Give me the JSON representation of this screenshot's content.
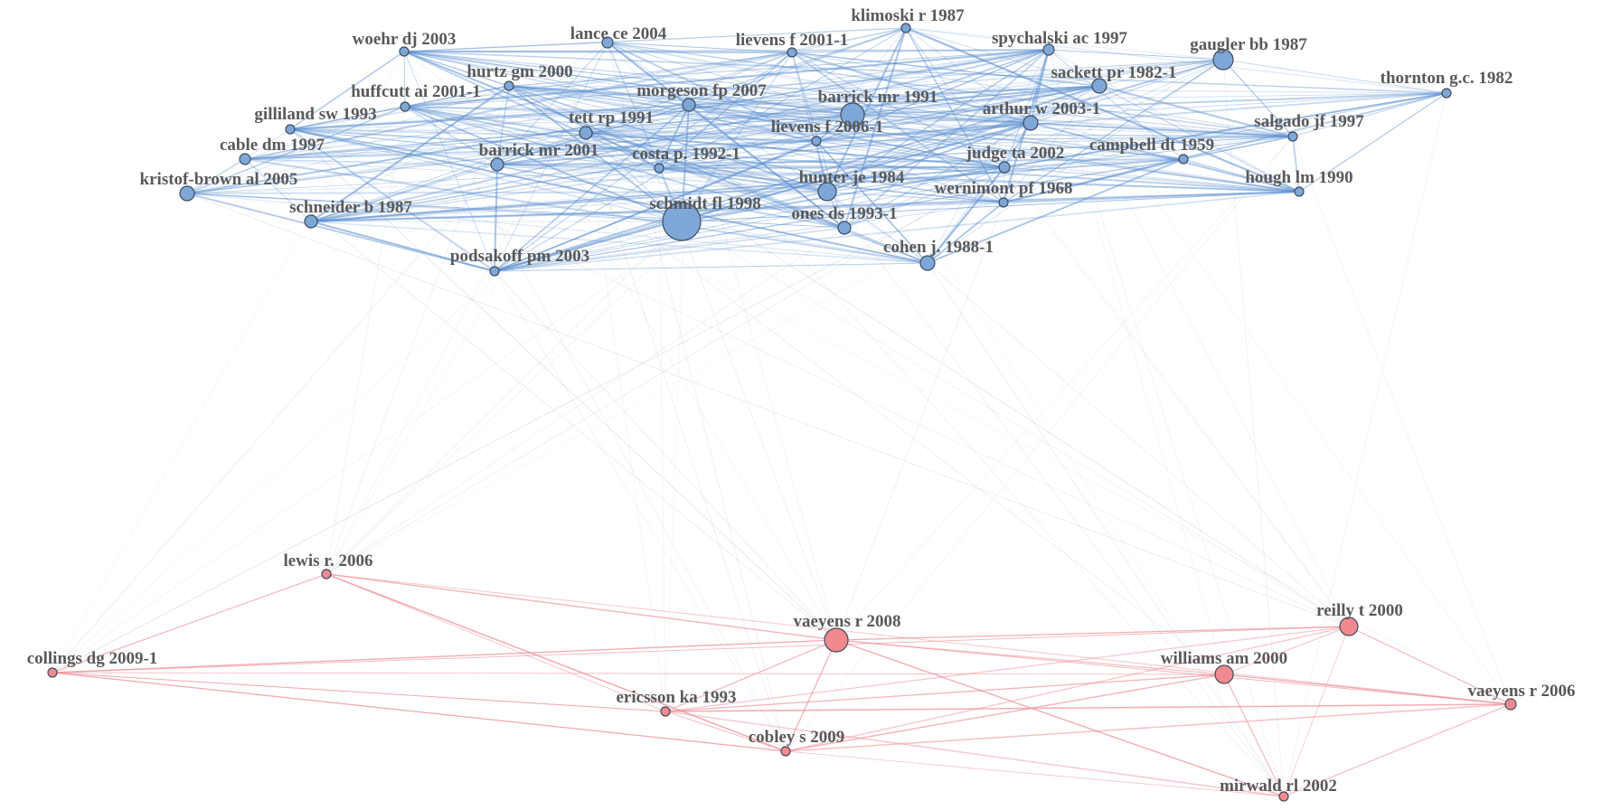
{
  "colors": {
    "cluster_blue_fill": "#7ea7d8",
    "cluster_blue_edge": "#5b8fd0",
    "cluster_red_fill": "#f08a8f",
    "cluster_red_edge": "#ee8d96",
    "node_stroke": "#3e4a5c",
    "inter_edge": "#b8bec8"
  },
  "clusters": [
    {
      "id": "blue",
      "nodes": [
        {
          "label": "woehr dj 2003"
        },
        {
          "label": "lance ce 2004"
        },
        {
          "label": "klimoski r 1987"
        },
        {
          "label": "lievens f 2001-1"
        },
        {
          "label": "spychalski ac 1997"
        },
        {
          "label": "gaugler bb 1987"
        },
        {
          "label": "hurtz gm 2000"
        },
        {
          "label": "sackett pr 1982-1"
        },
        {
          "label": "thornton g.c. 1982"
        },
        {
          "label": "huffcutt ai 2001-1"
        },
        {
          "label": "morgeson fp 2007"
        },
        {
          "label": "barrick mr 1991"
        },
        {
          "label": "gilliland sw 1993"
        },
        {
          "label": "tett rp 1991"
        },
        {
          "label": "arthur w 2003-1"
        },
        {
          "label": "salgado jf 1997"
        },
        {
          "label": "lievens f 2006-1"
        },
        {
          "label": "cable dm 1997"
        },
        {
          "label": "barrick mr 2001"
        },
        {
          "label": "costa p. 1992-1"
        },
        {
          "label": "judge ta 2002"
        },
        {
          "label": "campbell dt 1959"
        },
        {
          "label": "kristof-brown al 2005"
        },
        {
          "label": "hunter je 1984"
        },
        {
          "label": "hough lm 1990"
        },
        {
          "label": "wernimont pf 1968"
        },
        {
          "label": "schmidt fl 1998"
        },
        {
          "label": "schneider b 1987"
        },
        {
          "label": "ones ds 1993-1"
        },
        {
          "label": "cohen j. 1988-1"
        },
        {
          "label": "podsakoff pm 2003"
        }
      ]
    },
    {
      "id": "red",
      "nodes": [
        {
          "label": "lewis r. 2006"
        },
        {
          "label": "collings dg 2009-1"
        },
        {
          "label": "vaeyens r 2008"
        },
        {
          "label": "reilly t 2000"
        },
        {
          "label": "williams am 2000"
        },
        {
          "label": "vaeyens r 2006"
        },
        {
          "label": "ericsson ka 1993"
        },
        {
          "label": "cobley s 2009"
        },
        {
          "label": "mirwald rl 2002"
        }
      ]
    }
  ]
}
